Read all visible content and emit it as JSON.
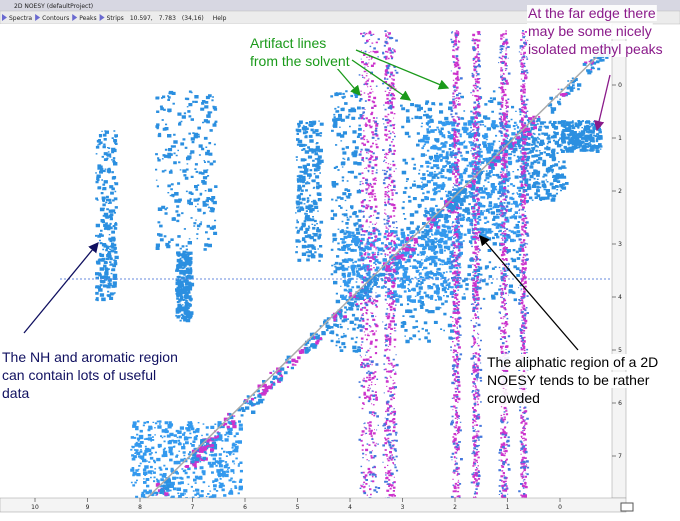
{
  "window": {
    "title": "2D NOESY (defaultProject)"
  },
  "toolbar": {
    "items": [
      "Spectra",
      "Contours",
      "Peaks",
      "Strips"
    ],
    "coords": [
      "10.597,",
      "7.783",
      "(34,16)"
    ],
    "help": "Help"
  },
  "axis": {
    "x_ticks": [
      "10",
      "9",
      "8",
      "7",
      "6",
      "5",
      "4",
      "3",
      "2",
      "1",
      "0"
    ],
    "y_ticks": [
      "0",
      "1",
      "2",
      "3",
      "4",
      "5",
      "6",
      "7"
    ]
  },
  "annotations": [
    {
      "lines": [
        "Artifact lines",
        "from the solvent"
      ]
    },
    {
      "lines": [
        "At the far edge there",
        "may be some nicely",
        "isolated methyl peaks"
      ]
    },
    {
      "lines": [
        "The NH and aromatic region",
        "can contain lots of useful",
        "data"
      ]
    },
    {
      "lines": [
        "The aliphatic region of a 2D",
        "NOESY tends to be rather",
        "crowded"
      ]
    }
  ]
}
